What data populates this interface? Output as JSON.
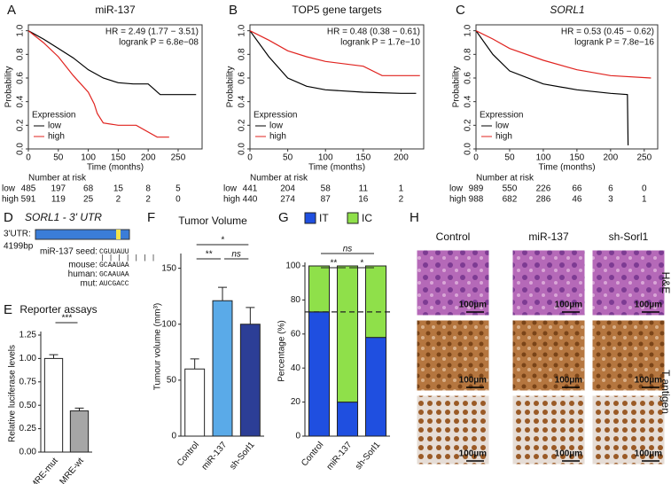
{
  "chart_data": [
    {
      "type": "line",
      "panel": "A",
      "title": "miR-137",
      "annotations": [
        "HR = 2.49 (1.77 − 3.51)",
        "logrank P = 6.8e−08"
      ],
      "xlabel": "Time (months)",
      "ylabel": "Probability",
      "xlim": [
        0,
        290
      ],
      "ylim": [
        0,
        1.05
      ],
      "xticks": [
        0,
        50,
        100,
        150,
        200,
        250
      ],
      "yticks": [
        {
          "value": 0,
          "label": "0.0"
        },
        {
          "value": 0.2,
          "label": "0.2"
        },
        {
          "value": 0.4,
          "label": "0.4"
        },
        {
          "value": 0.6,
          "label": "0.6"
        },
        {
          "value": 0.8,
          "label": "0.8"
        },
        {
          "value": 1,
          "label": "1.0"
        }
      ],
      "legend_title": "Expression",
      "risk_title": "Number at risk",
      "series": [
        {
          "name": "low",
          "color": "#000000",
          "x": [
            0,
            25,
            50,
            75,
            100,
            125,
            150,
            175,
            200,
            220,
            250,
            280
          ],
          "values": [
            1,
            0.93,
            0.85,
            0.77,
            0.67,
            0.6,
            0.56,
            0.55,
            0.55,
            0.46,
            0.46,
            0.46
          ],
          "at_risk": [
            485,
            197,
            68,
            15,
            8,
            5
          ]
        },
        {
          "name": "high",
          "color": "#e0231f",
          "x": [
            0,
            25,
            50,
            75,
            100,
            110,
            115,
            125,
            150,
            180,
            215,
            235
          ],
          "values": [
            1,
            0.9,
            0.78,
            0.62,
            0.48,
            0.38,
            0.3,
            0.22,
            0.2,
            0.2,
            0.1,
            0.1
          ],
          "at_risk": [
            591,
            119,
            25,
            2,
            2,
            0
          ]
        }
      ]
    },
    {
      "type": "line",
      "panel": "B",
      "title": "TOP5 gene targets",
      "annotations": [
        "HR = 0.48 (0.38 − 0.61)",
        "logrank P = 1.7e−10"
      ],
      "xlabel": "Time (months)",
      "ylabel": "Probability",
      "xlim": [
        0,
        230
      ],
      "ylim": [
        0,
        1.05
      ],
      "xticks": [
        0,
        50,
        100,
        150,
        200
      ],
      "yticks": [
        {
          "value": 0,
          "label": "0.0"
        },
        {
          "value": 0.2,
          "label": "0.2"
        },
        {
          "value": 0.4,
          "label": "0.4"
        },
        {
          "value": 0.6,
          "label": "0.6"
        },
        {
          "value": 0.8,
          "label": "0.8"
        },
        {
          "value": 1,
          "label": "1.0"
        }
      ],
      "legend_title": "Expression",
      "risk_title": "Number at risk",
      "series": [
        {
          "name": "low",
          "color": "#000000",
          "x": [
            0,
            25,
            50,
            75,
            100,
            150,
            200,
            220
          ],
          "values": [
            1,
            0.78,
            0.6,
            0.53,
            0.5,
            0.48,
            0.47,
            0.47
          ],
          "at_risk": [
            441,
            204,
            58,
            11,
            1
          ]
        },
        {
          "name": "high",
          "color": "#e0231f",
          "x": [
            0,
            25,
            50,
            75,
            100,
            150,
            175,
            200,
            225
          ],
          "values": [
            1,
            0.92,
            0.83,
            0.78,
            0.74,
            0.7,
            0.62,
            0.62,
            0.62
          ],
          "at_risk": [
            440,
            274,
            87,
            16,
            2
          ]
        }
      ]
    },
    {
      "type": "line",
      "panel": "C",
      "title": "SORL1",
      "annotations": [
        "HR = 0.53 (0.45 − 0.62)",
        "logrank P = 7.8e−16"
      ],
      "xlabel": "Time (months)",
      "ylabel": "Probability",
      "xlim": [
        0,
        270
      ],
      "ylim": [
        0,
        1.05
      ],
      "xticks": [
        0,
        50,
        100,
        150,
        200,
        250
      ],
      "yticks": [
        {
          "value": 0,
          "label": "0.0"
        },
        {
          "value": 0.2,
          "label": "0.2"
        },
        {
          "value": 0.4,
          "label": "0.4"
        },
        {
          "value": 0.6,
          "label": "0.6"
        },
        {
          "value": 0.8,
          "label": "0.8"
        },
        {
          "value": 1,
          "label": "1.0"
        }
      ],
      "legend_title": "Expression",
      "risk_title": "Number at risk",
      "series": [
        {
          "name": "low",
          "color": "#000000",
          "x": [
            0,
            25,
            50,
            100,
            150,
            200,
            225,
            226
          ],
          "values": [
            1,
            0.8,
            0.66,
            0.55,
            0.5,
            0.47,
            0.46,
            0.03
          ],
          "at_risk": [
            989,
            550,
            226,
            66,
            6,
            0
          ]
        },
        {
          "name": "high",
          "color": "#e0231f",
          "x": [
            0,
            25,
            50,
            100,
            150,
            200,
            260
          ],
          "values": [
            1,
            0.93,
            0.85,
            0.75,
            0.67,
            0.62,
            0.6
          ],
          "at_risk": [
            988,
            682,
            286,
            46,
            3,
            1
          ]
        }
      ]
    },
    {
      "type": "bar",
      "panel": "E",
      "title": "Reporter assays",
      "ylabel": "Relative luciferase levels",
      "categories": [
        "MRE-mut",
        "MRE-wt"
      ],
      "values": [
        1.0,
        0.44
      ],
      "errors": [
        0.04,
        0.03
      ],
      "colors": [
        "#ffffff",
        "#a6a6a6"
      ],
      "ylim": [
        0,
        1.25
      ],
      "yticks": [
        {
          "value": 0,
          "label": "0.00"
        },
        {
          "value": 0.25,
          "label": "0.25"
        },
        {
          "value": 0.5,
          "label": "0.50"
        },
        {
          "value": 0.75,
          "label": "0.75"
        },
        {
          "value": 1,
          "label": "1.00"
        },
        {
          "value": 1.25,
          "label": "1.25"
        }
      ],
      "significance": [
        "***"
      ]
    },
    {
      "type": "bar",
      "panel": "F",
      "title": "Tumor Volume",
      "ylabel": "Tumour volume (mm³)",
      "categories": [
        "Control",
        "miR-137",
        "sh-Sorl1"
      ],
      "values": [
        60,
        121,
        100
      ],
      "errors": [
        9,
        12,
        15
      ],
      "colors": [
        "#ffffff",
        "#5aaae8",
        "#2c3e96"
      ],
      "ylim": [
        0,
        160
      ],
      "yticks": [
        0,
        50,
        100,
        150
      ],
      "significance": [
        "*",
        "**",
        "ns"
      ]
    },
    {
      "type": "stacked_bar",
      "panel": "G",
      "ylabel": "Percentage (%)",
      "categories": [
        "Control",
        "miR-137",
        "sh-Sorl1"
      ],
      "series": [
        {
          "name": "IT",
          "color": "#1f4fe0",
          "values": [
            73,
            20,
            58
          ]
        },
        {
          "name": "IC",
          "color": "#8fe04a",
          "values": [
            27,
            80,
            42
          ]
        }
      ],
      "reference_line": 73,
      "ylim": [
        0,
        100
      ],
      "yticks": [
        0,
        20,
        40,
        60,
        80,
        100
      ],
      "significance": [
        "ns",
        "**",
        "*"
      ]
    }
  ],
  "panel_d": {
    "panel": "D",
    "title": "SORL1 - 3' UTR",
    "utr_label": "3'UTR:",
    "length": "4199bp",
    "seed_label": "miR-137 seed:",
    "seed": "CGUUAUU",
    "alignments": [
      [
        "mouse:",
        "GCAAUAA"
      ],
      [
        "human:",
        "GCAAUAA"
      ],
      [
        "mut:",
        "AUCGACC"
      ]
    ]
  },
  "panel_h": {
    "panel": "H",
    "columns": [
      "Control",
      "miR-137",
      "sh-Sorl1"
    ],
    "rows": [
      "H&E",
      "T antigen"
    ],
    "scale_bar": "100µm"
  }
}
